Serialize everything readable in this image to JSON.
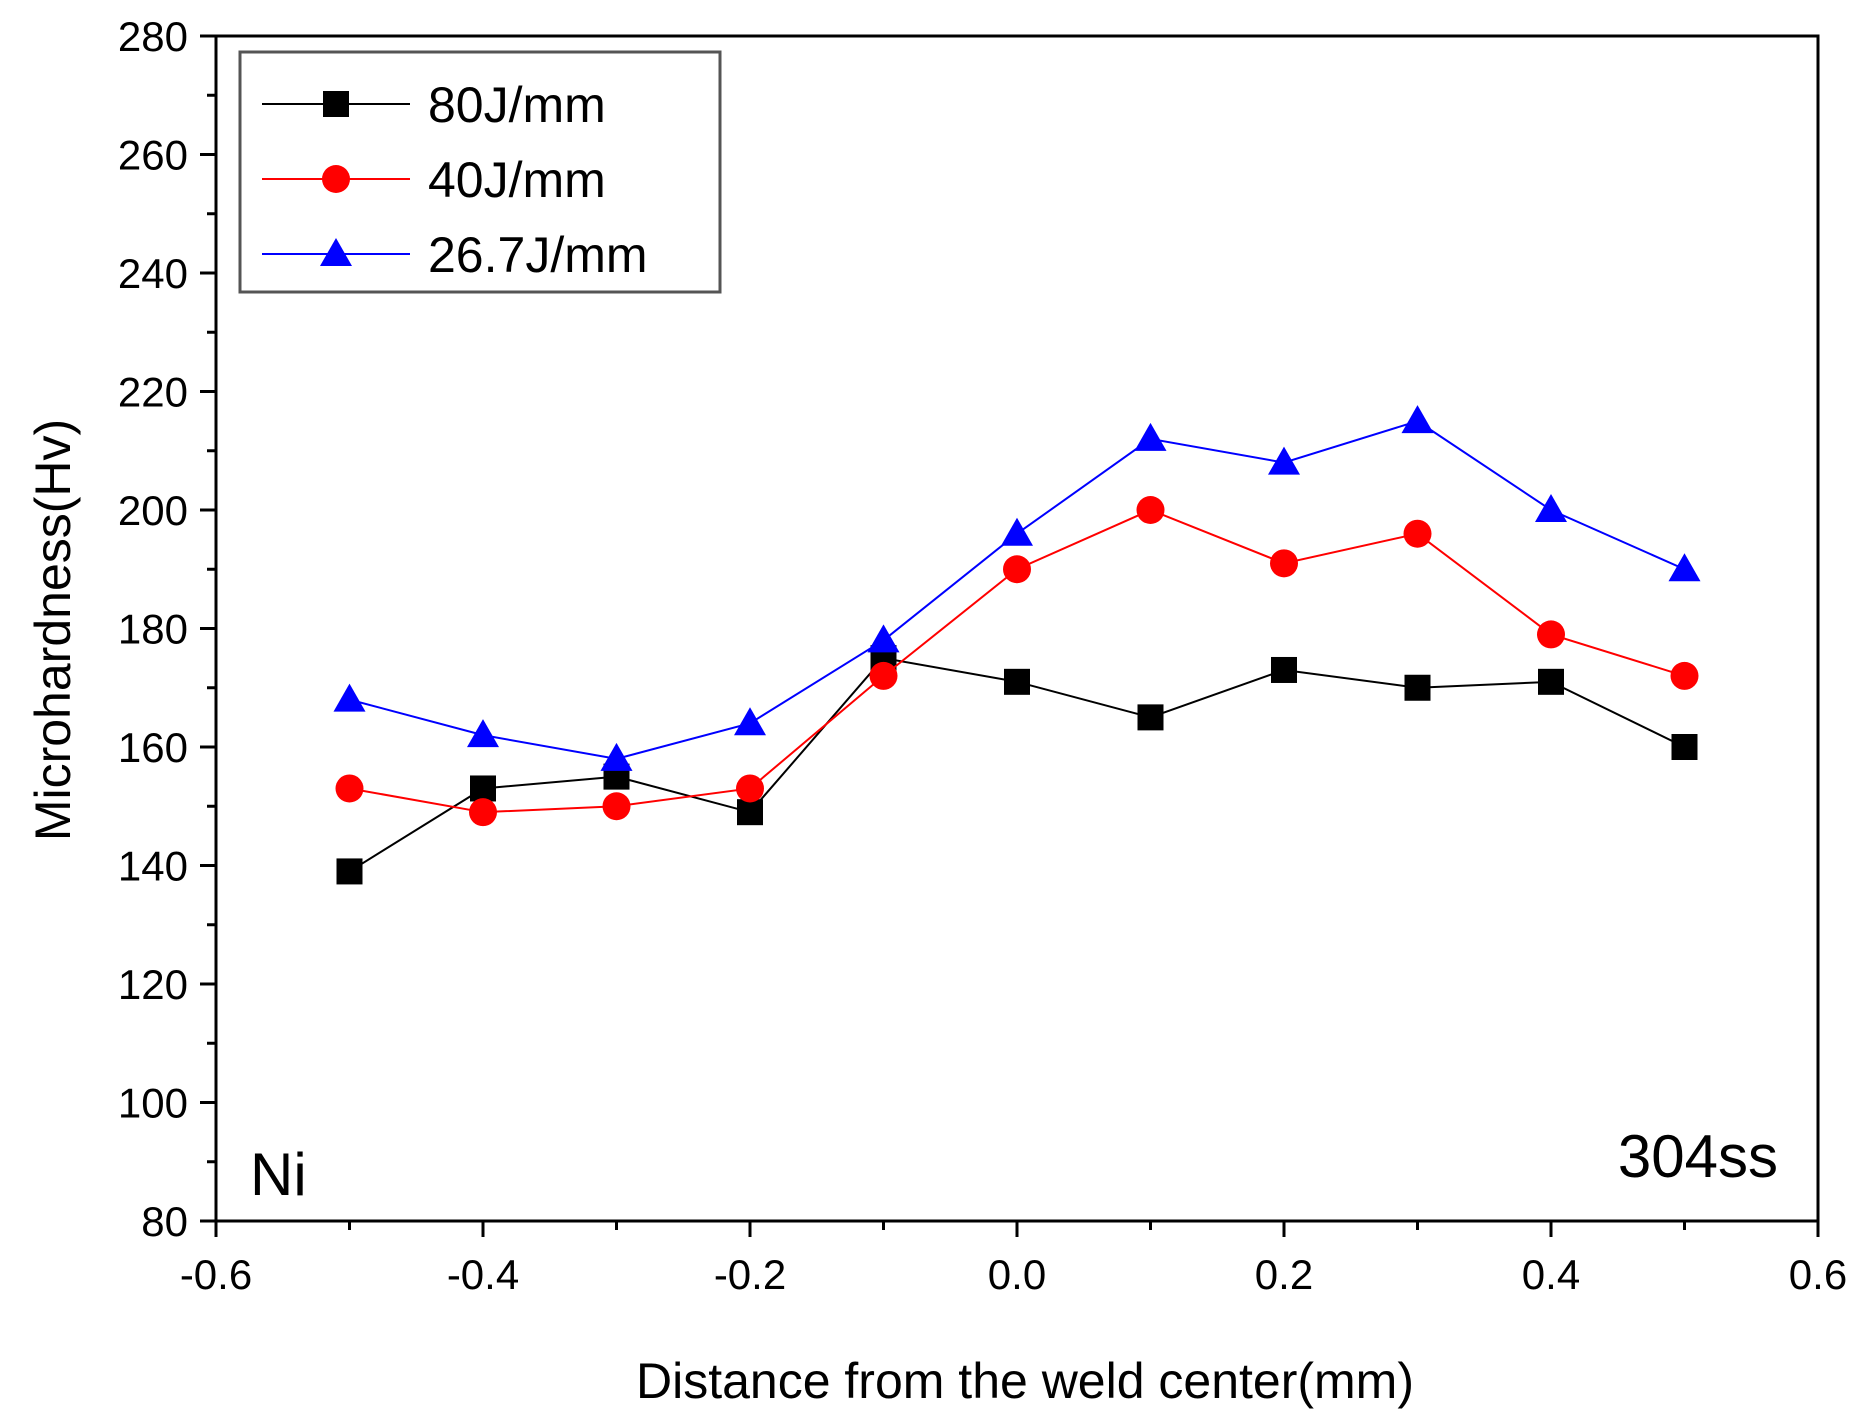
{
  "chart_data": {
    "type": "line",
    "xlabel": "Distance from the weld center(mm)",
    "ylabel": "Microhardness(Hv)",
    "xlim": [
      -0.6,
      0.6
    ],
    "ylim": [
      80,
      280
    ],
    "xticks": [
      -0.6,
      -0.4,
      -0.2,
      0.0,
      0.2,
      0.4,
      0.6
    ],
    "xtick_labels": [
      "-0.6",
      "-0.4",
      "-0.2",
      "0.0",
      "0.2",
      "0.4",
      "0.6"
    ],
    "yticks": [
      80,
      100,
      120,
      140,
      160,
      180,
      200,
      220,
      240,
      260,
      280
    ],
    "ytick_labels": [
      "80",
      "100",
      "120",
      "140",
      "160",
      "180",
      "200",
      "220",
      "240",
      "260",
      "280"
    ],
    "x": [
      -0.5,
      -0.4,
      -0.3,
      -0.2,
      -0.1,
      0.0,
      0.1,
      0.2,
      0.3,
      0.4,
      0.5
    ],
    "series": [
      {
        "name": "80J/mm",
        "color": "#000000",
        "marker": "square",
        "values": [
          139,
          153,
          155,
          149,
          175,
          171,
          165,
          173,
          170,
          171,
          160
        ]
      },
      {
        "name": "40J/mm",
        "color": "#ff0000",
        "marker": "circle",
        "values": [
          153,
          149,
          150,
          153,
          172,
          190,
          200,
          191,
          196,
          179,
          172
        ]
      },
      {
        "name": "26.7J/mm",
        "color": "#0000ff",
        "marker": "triangle",
        "values": [
          168,
          162,
          158,
          164,
          178,
          196,
          212,
          208,
          215,
          200,
          190
        ]
      }
    ],
    "annotations": [
      {
        "text": "Ni",
        "position": "bottom-left"
      },
      {
        "text": "304ss",
        "position": "bottom-right"
      }
    ],
    "legend": "top-left",
    "grid": false
  }
}
